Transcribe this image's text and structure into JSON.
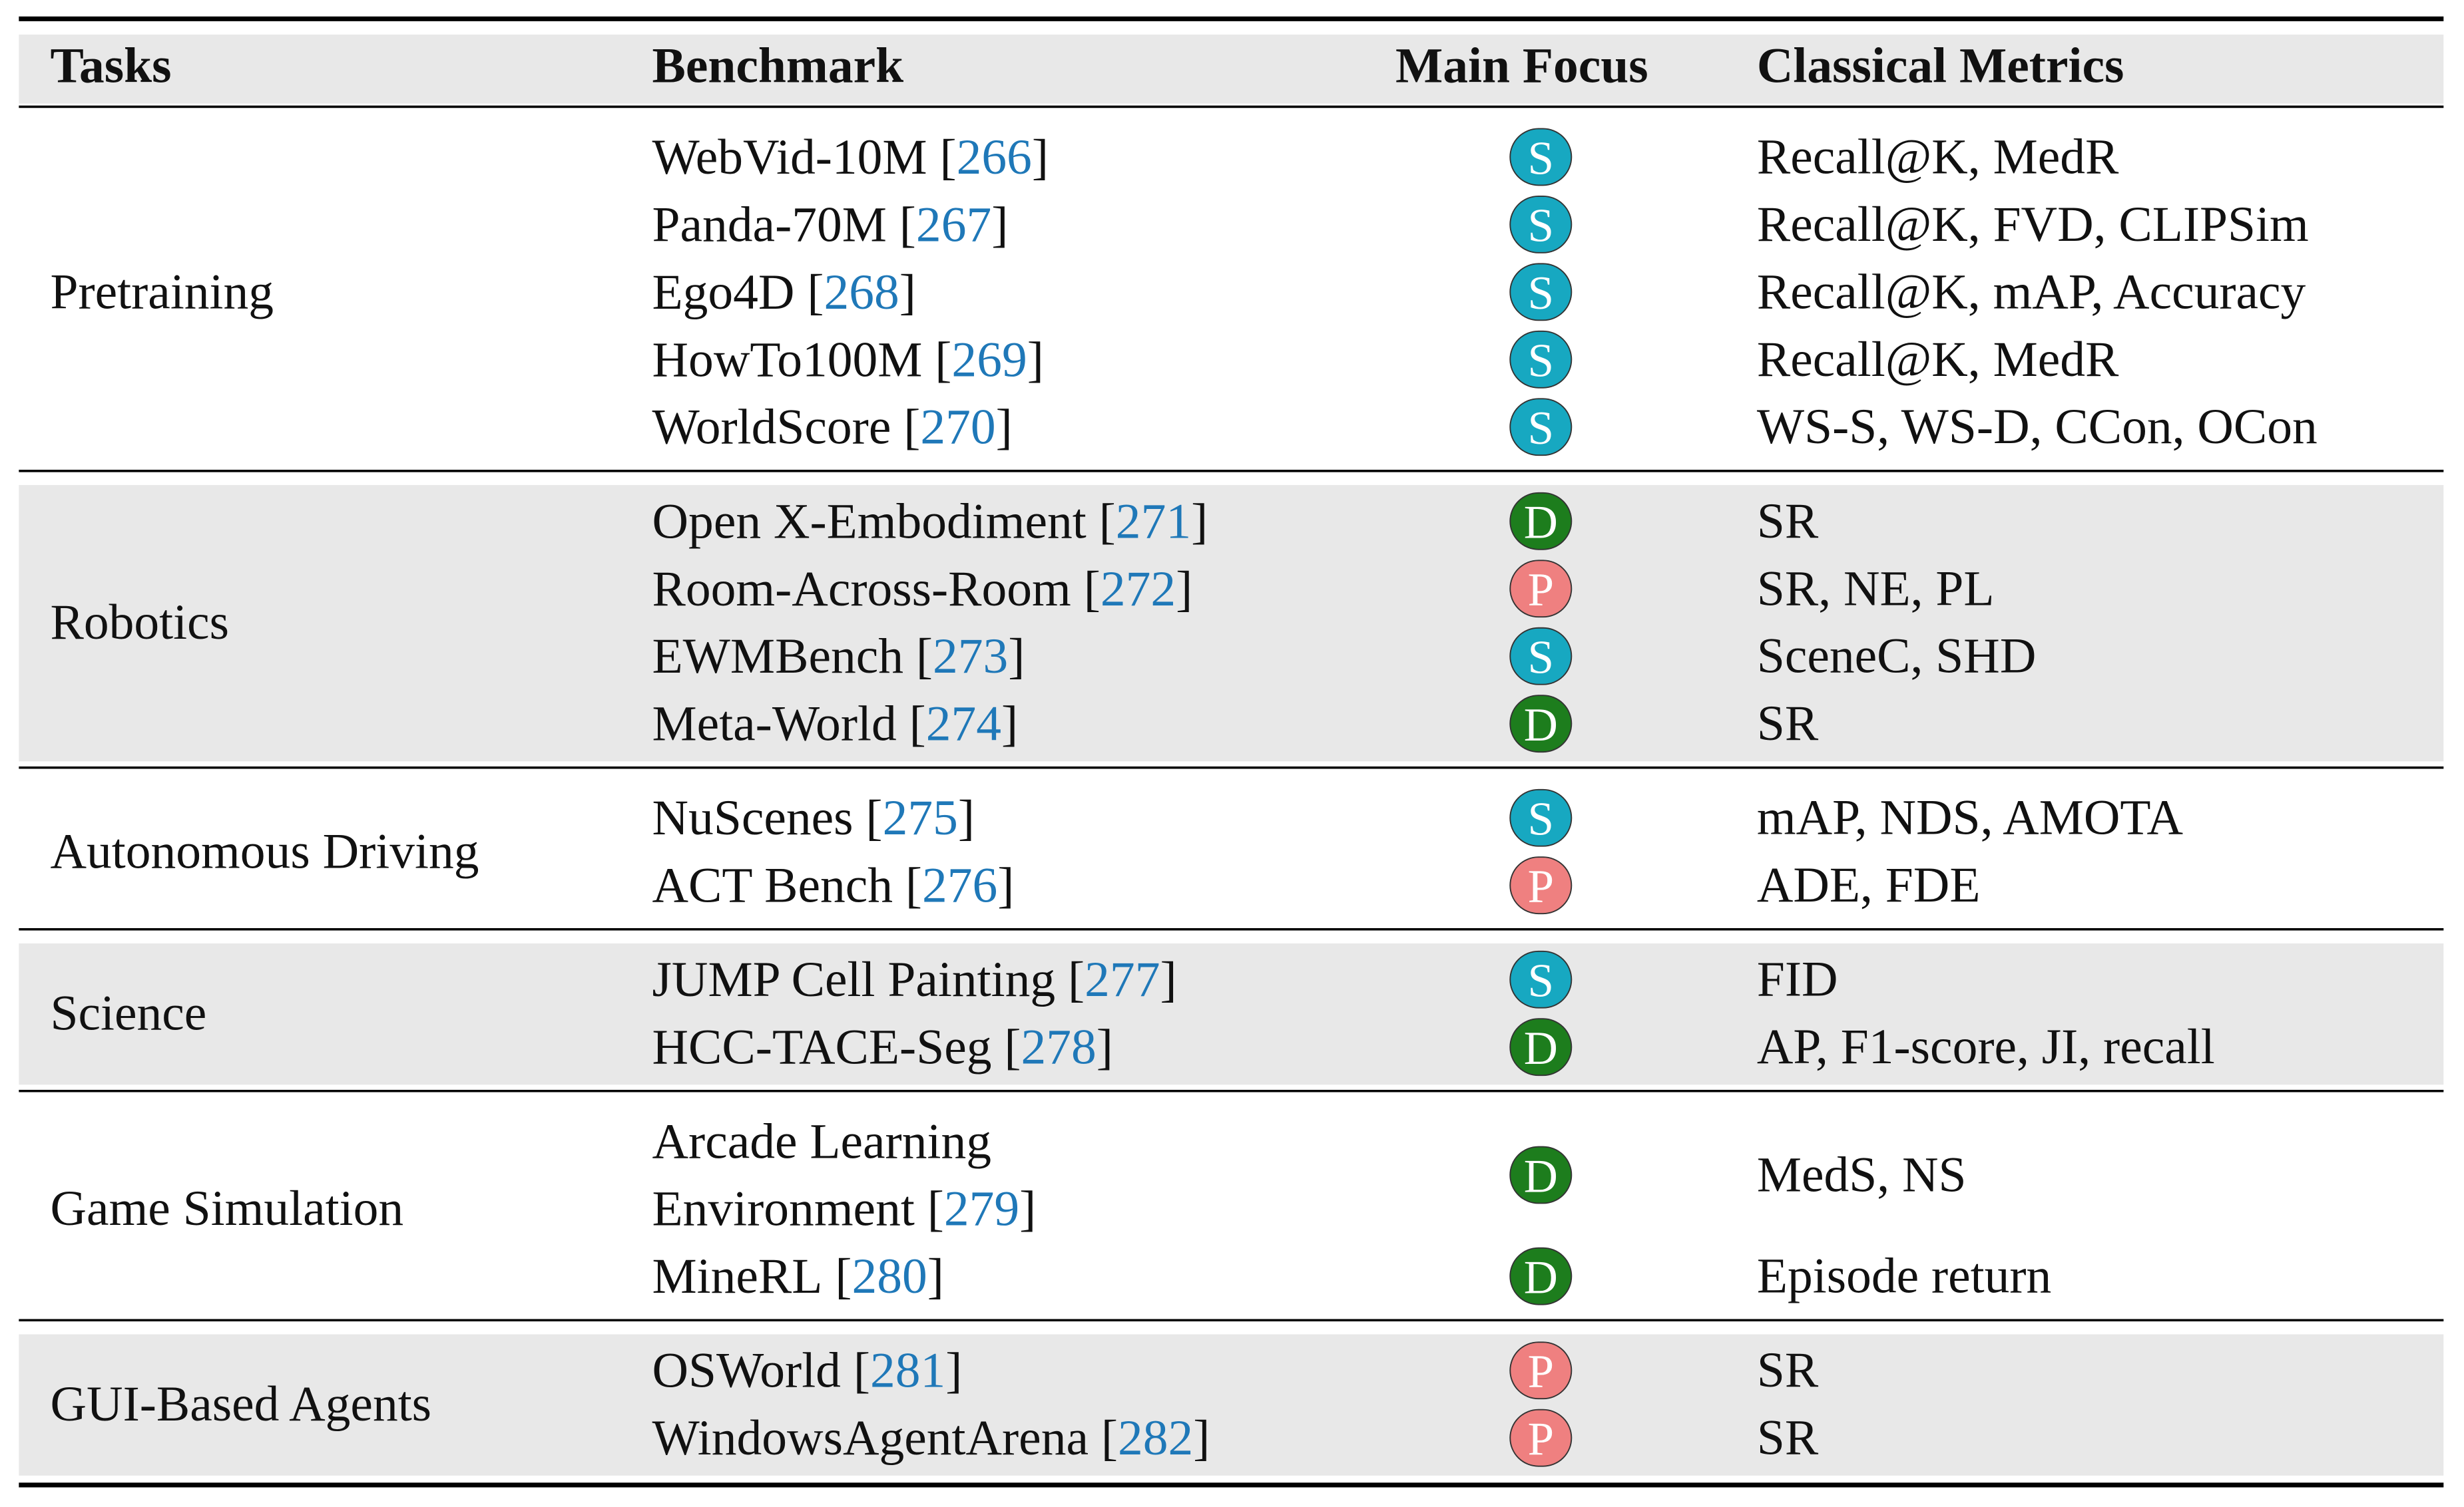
{
  "header": {
    "columns": [
      "Tasks",
      "Benchmark",
      "Main Focus",
      "Classical Metrics"
    ]
  },
  "citation_brackets": [
    "[",
    "]"
  ],
  "focus_colors": {
    "S": "#17a8c1",
    "D": "#1d7d1d",
    "P": "#ef8080"
  },
  "groups": [
    {
      "task": "Pretraining",
      "rows": [
        {
          "benchmark": [
            "WebVid-10M"
          ],
          "ref": "266",
          "focus": "S",
          "metrics": "Recall@K, MedR"
        },
        {
          "benchmark": [
            "Panda-70M"
          ],
          "ref": "267",
          "focus": "S",
          "metrics": "Recall@K, FVD, CLIPSim"
        },
        {
          "benchmark": [
            "Ego4D"
          ],
          "ref": "268",
          "focus": "S",
          "metrics": "Recall@K, mAP, Accuracy"
        },
        {
          "benchmark": [
            "HowTo100M"
          ],
          "ref": "269",
          "focus": "S",
          "metrics": "Recall@K, MedR"
        },
        {
          "benchmark": [
            "WorldScore"
          ],
          "ref": "270",
          "focus": "S",
          "metrics": "WS-S, WS-D, CCon, OCon"
        }
      ]
    },
    {
      "task": "Robotics",
      "rows": [
        {
          "benchmark": [
            "Open X-Embodiment"
          ],
          "ref": "271",
          "focus": "D",
          "metrics": "SR"
        },
        {
          "benchmark": [
            "Room-Across-Room"
          ],
          "ref": "272",
          "focus": "P",
          "metrics": "SR, NE, PL"
        },
        {
          "benchmark": [
            "EWMBench"
          ],
          "ref": "273",
          "focus": "S",
          "metrics": "SceneC, SHD"
        },
        {
          "benchmark": [
            "Meta-World"
          ],
          "ref": "274",
          "focus": "D",
          "metrics": "SR"
        }
      ]
    },
    {
      "task": "Autonomous Driving",
      "rows": [
        {
          "benchmark": [
            "NuScenes"
          ],
          "ref": "275",
          "focus": "S",
          "metrics": "mAP, NDS, AMOTA"
        },
        {
          "benchmark": [
            "ACT Bench"
          ],
          "ref": "276",
          "focus": "P",
          "metrics": "ADE, FDE"
        }
      ]
    },
    {
      "task": "Science",
      "rows": [
        {
          "benchmark": [
            "JUMP Cell Painting"
          ],
          "ref": "277",
          "focus": "S",
          "metrics": "FID"
        },
        {
          "benchmark": [
            "HCC-TACE-Seg"
          ],
          "ref": "278",
          "focus": "D",
          "metrics": "AP, F1-score, JI, recall"
        }
      ]
    },
    {
      "task": "Game Simulation",
      "rows": [
        {
          "benchmark": [
            "Arcade Learning",
            "Environment"
          ],
          "ref": "279",
          "focus": "D",
          "metrics": "MedS, NS"
        },
        {
          "benchmark": [
            "MineRL"
          ],
          "ref": "280",
          "focus": "D",
          "metrics": "Episode return"
        }
      ]
    },
    {
      "task": "GUI-Based Agents",
      "rows": [
        {
          "benchmark": [
            "OSWorld"
          ],
          "ref": "281",
          "focus": "P",
          "metrics": "SR"
        },
        {
          "benchmark": [
            "WindowsAgentArena"
          ],
          "ref": "282",
          "focus": "P",
          "metrics": "SR"
        }
      ]
    }
  ]
}
